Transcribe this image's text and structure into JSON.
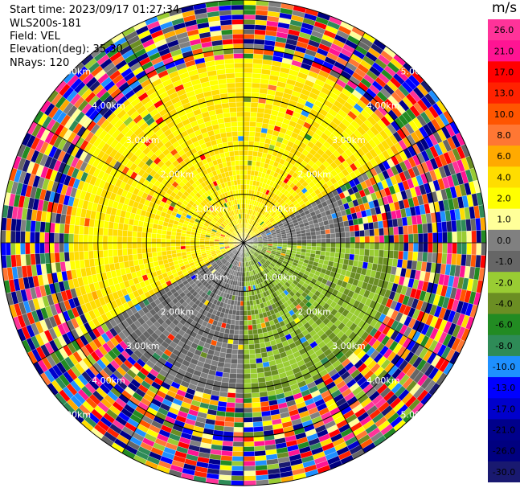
{
  "header": {
    "start_time": "Start time: 2023/09/17 01:27:34",
    "station": "WLS200s-181",
    "field": "Field: VEL",
    "elevation": "Elevation(deg): 35.30",
    "nrays": "NRays: 120"
  },
  "colorbar": {
    "unit": "m/s",
    "ticks": [
      "26.0",
      "21.0",
      "17.0",
      "13.0",
      "10.0",
      "8.0",
      "6.0",
      "4.0",
      "2.0",
      "1.0",
      "0.0",
      "-1.0",
      "-2.0",
      "-4.0",
      "-6.0",
      "-8.0",
      "-10.0",
      "-13.0",
      "-17.0",
      "-21.0",
      "-26.0",
      "-30.0"
    ],
    "colors": [
      "#ff3399",
      "#ff1493",
      "#ff0000",
      "#ff2200",
      "#ff5500",
      "#ff7733",
      "#ffaa00",
      "#ffdd00",
      "#ffff00",
      "#ffff99",
      "#808080",
      "#666666",
      "#99cc33",
      "#6b8e23",
      "#228b22",
      "#2e8b57",
      "#1e90ff",
      "#0000ff",
      "#0000cc",
      "#00008b",
      "#000080",
      "#191970"
    ]
  },
  "rings": {
    "labels": [
      "1.00km",
      "2.00km",
      "3.00km",
      "4.00km",
      "5.00km"
    ]
  },
  "chart_data": {
    "type": "heatmap",
    "title": "",
    "projection": "polar PPI",
    "field": "VEL",
    "units": "m/s",
    "nrays": 120,
    "elevation_deg": 35.3,
    "range_rings_km": [
      1,
      2,
      3,
      4,
      5
    ],
    "max_range_km": 5,
    "color_scale": {
      "min": -30.0,
      "max": 26.0,
      "bounds": [
        26.0,
        21.0,
        17.0,
        13.0,
        10.0,
        8.0,
        6.0,
        4.0,
        2.0,
        1.0,
        0.0,
        -1.0,
        -2.0,
        -4.0,
        -6.0,
        -8.0,
        -10.0,
        -13.0,
        -17.0,
        -21.0,
        -26.0,
        -30.0
      ]
    },
    "sectors": [
      {
        "azimuth_start_deg": 300,
        "azimuth_end_deg": 60,
        "max_range_km": 3.8,
        "value_ms": 2.0
      },
      {
        "azimuth_start_deg": 60,
        "azimuth_end_deg": 90,
        "max_range_km": 2.2,
        "value_ms": -1.0
      },
      {
        "azimuth_start_deg": 90,
        "azimuth_end_deg": 180,
        "max_range_km": 3.2,
        "value_ms": -4.0
      },
      {
        "azimuth_start_deg": 180,
        "azimuth_end_deg": 240,
        "max_range_km": 3.2,
        "value_ms": -1.0
      },
      {
        "azimuth_start_deg": 240,
        "azimuth_end_deg": 300,
        "max_range_km": 3.6,
        "value_ms": 2.0
      }
    ]
  }
}
